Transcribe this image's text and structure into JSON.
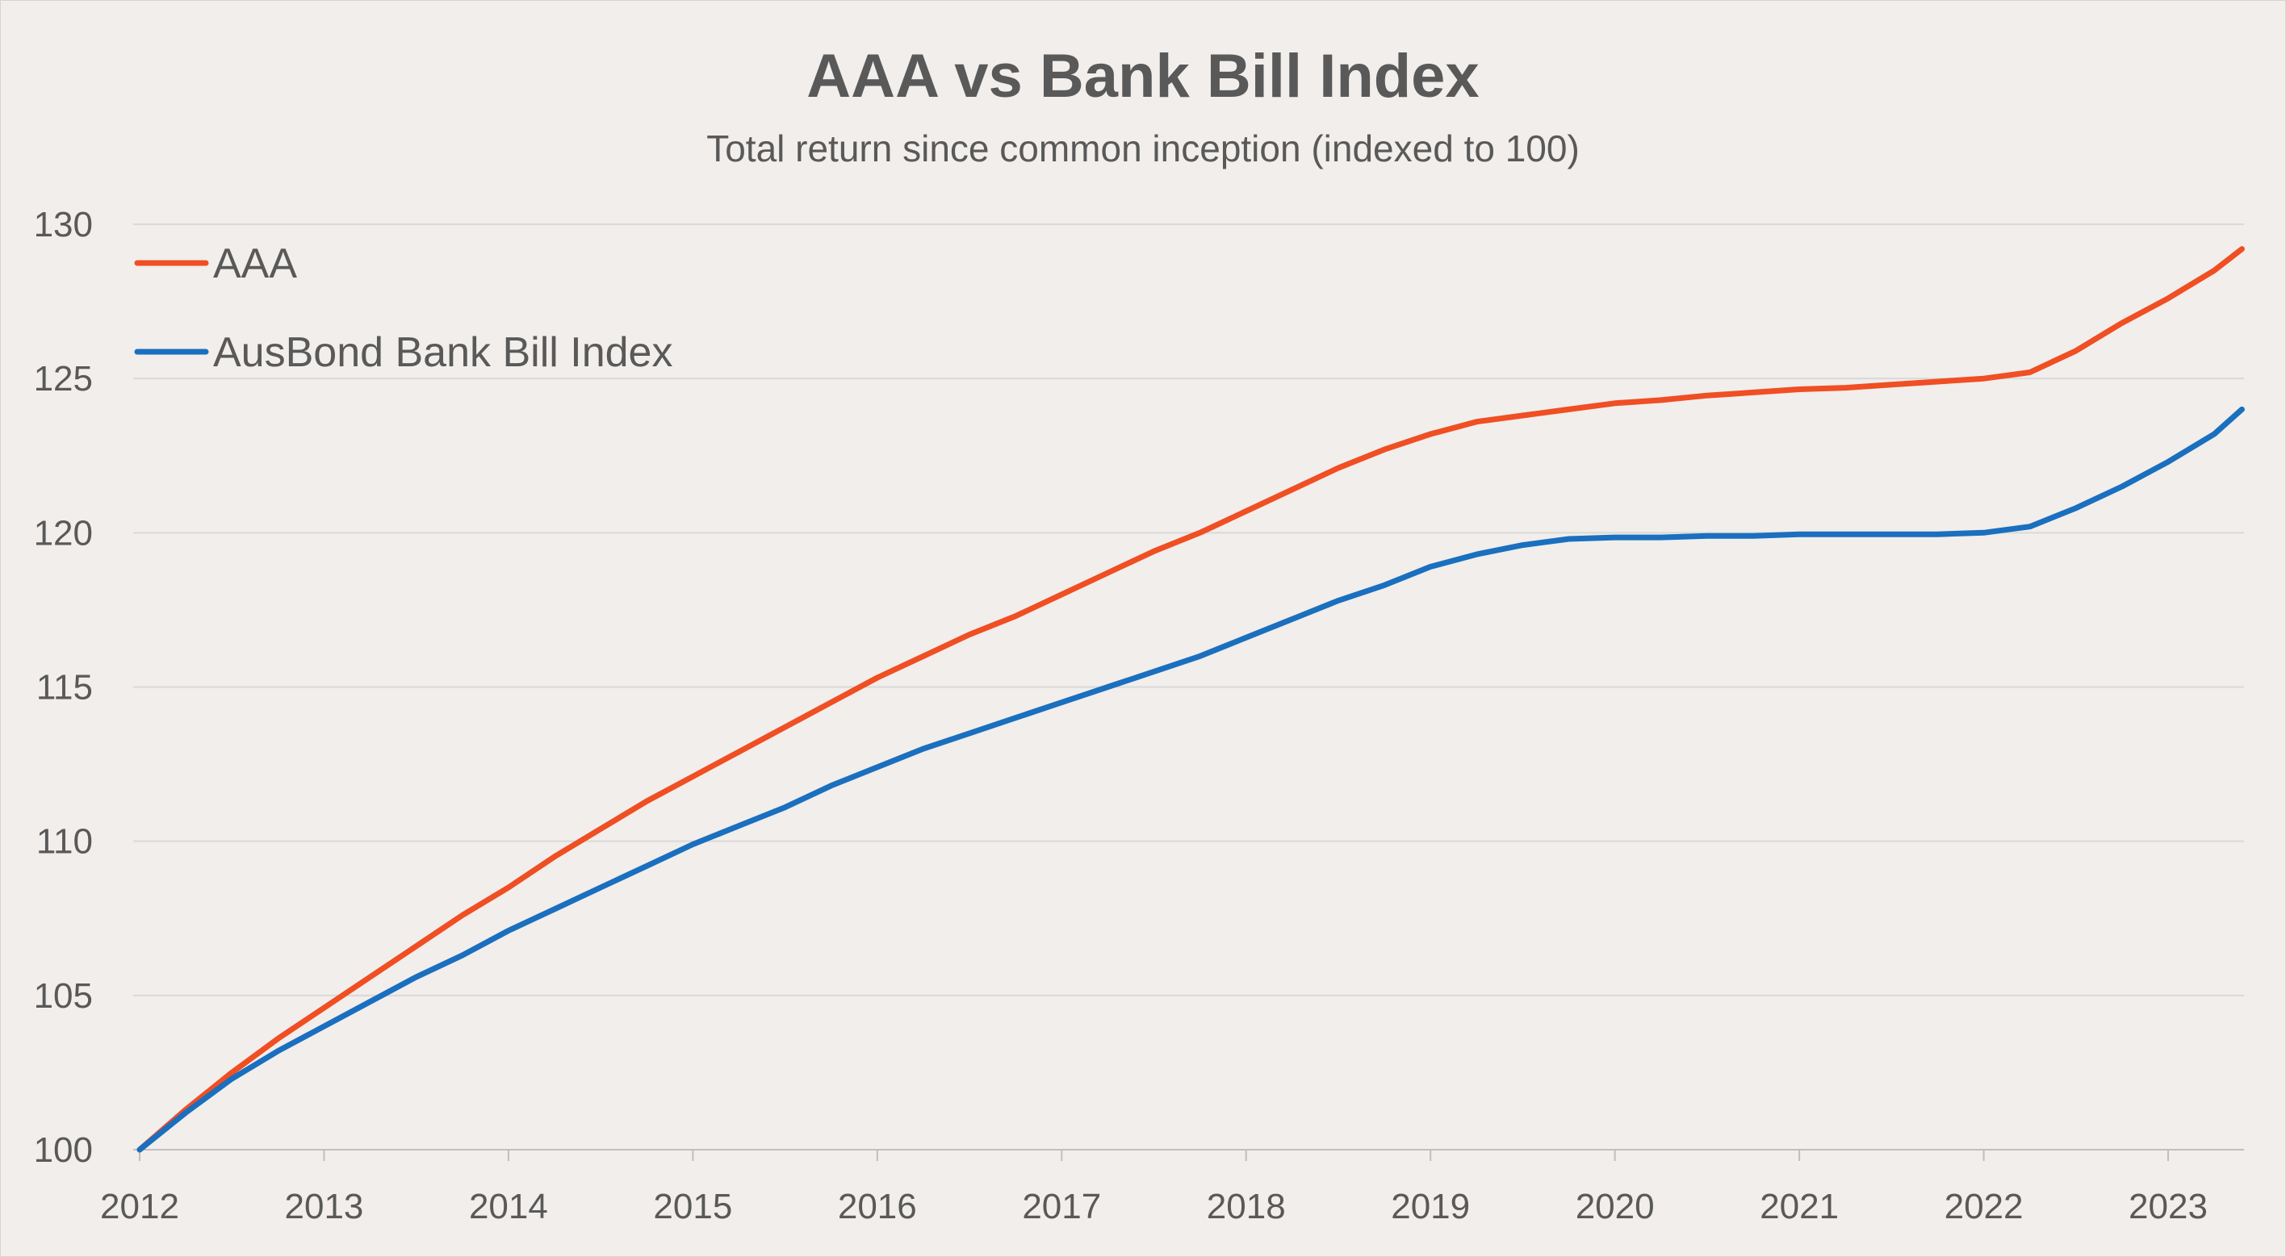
{
  "chart_data": {
    "type": "line",
    "title": "AAA vs Bank Bill Index",
    "subtitle": "Total return since common inception (indexed to 100)",
    "xlabel": "",
    "ylabel": "",
    "x_ticks": [
      "2012",
      "2013",
      "2014",
      "2015",
      "2016",
      "2017",
      "2018",
      "2019",
      "2020",
      "2021",
      "2022",
      "2023"
    ],
    "y_ticks": [
      "100",
      "105",
      "110",
      "115",
      "120",
      "125",
      "130"
    ],
    "xlim": [
      2012,
      2023.4
    ],
    "ylim": [
      100,
      130
    ],
    "grid": "horizontal",
    "legend": "top-left",
    "x": [
      2012.0,
      2012.25,
      2012.5,
      2012.75,
      2013.0,
      2013.25,
      2013.5,
      2013.75,
      2014.0,
      2014.25,
      2014.5,
      2014.75,
      2015.0,
      2015.25,
      2015.5,
      2015.75,
      2016.0,
      2016.25,
      2016.5,
      2016.75,
      2017.0,
      2017.25,
      2017.5,
      2017.75,
      2018.0,
      2018.25,
      2018.5,
      2018.75,
      2019.0,
      2019.25,
      2019.5,
      2019.75,
      2020.0,
      2020.25,
      2020.5,
      2020.75,
      2021.0,
      2021.25,
      2021.5,
      2021.75,
      2022.0,
      2022.25,
      2022.5,
      2022.75,
      2023.0,
      2023.25,
      2023.4
    ],
    "series": [
      {
        "name": "AAA",
        "color": "#f04e23",
        "values": [
          100.0,
          101.3,
          102.5,
          103.6,
          104.6,
          105.6,
          106.6,
          107.6,
          108.5,
          109.5,
          110.4,
          111.3,
          112.1,
          112.9,
          113.7,
          114.5,
          115.3,
          116.0,
          116.7,
          117.3,
          118.0,
          118.7,
          119.4,
          120.0,
          120.7,
          121.4,
          122.1,
          122.7,
          123.2,
          123.6,
          123.8,
          124.0,
          124.2,
          124.3,
          124.45,
          124.55,
          124.65,
          124.7,
          124.8,
          124.9,
          125.0,
          125.2,
          125.9,
          126.8,
          127.6,
          128.5,
          129.2
        ]
      },
      {
        "name": "AusBond Bank Bill Index",
        "color": "#1a6fbf",
        "values": [
          100.0,
          101.2,
          102.3,
          103.2,
          104.0,
          104.8,
          105.6,
          106.3,
          107.1,
          107.8,
          108.5,
          109.2,
          109.9,
          110.5,
          111.1,
          111.8,
          112.4,
          113.0,
          113.5,
          114.0,
          114.5,
          115.0,
          115.5,
          116.0,
          116.6,
          117.2,
          117.8,
          118.3,
          118.9,
          119.3,
          119.6,
          119.8,
          119.85,
          119.85,
          119.9,
          119.9,
          119.95,
          119.95,
          119.95,
          119.95,
          120.0,
          120.2,
          120.8,
          121.5,
          122.3,
          123.2,
          124.0
        ]
      }
    ]
  }
}
